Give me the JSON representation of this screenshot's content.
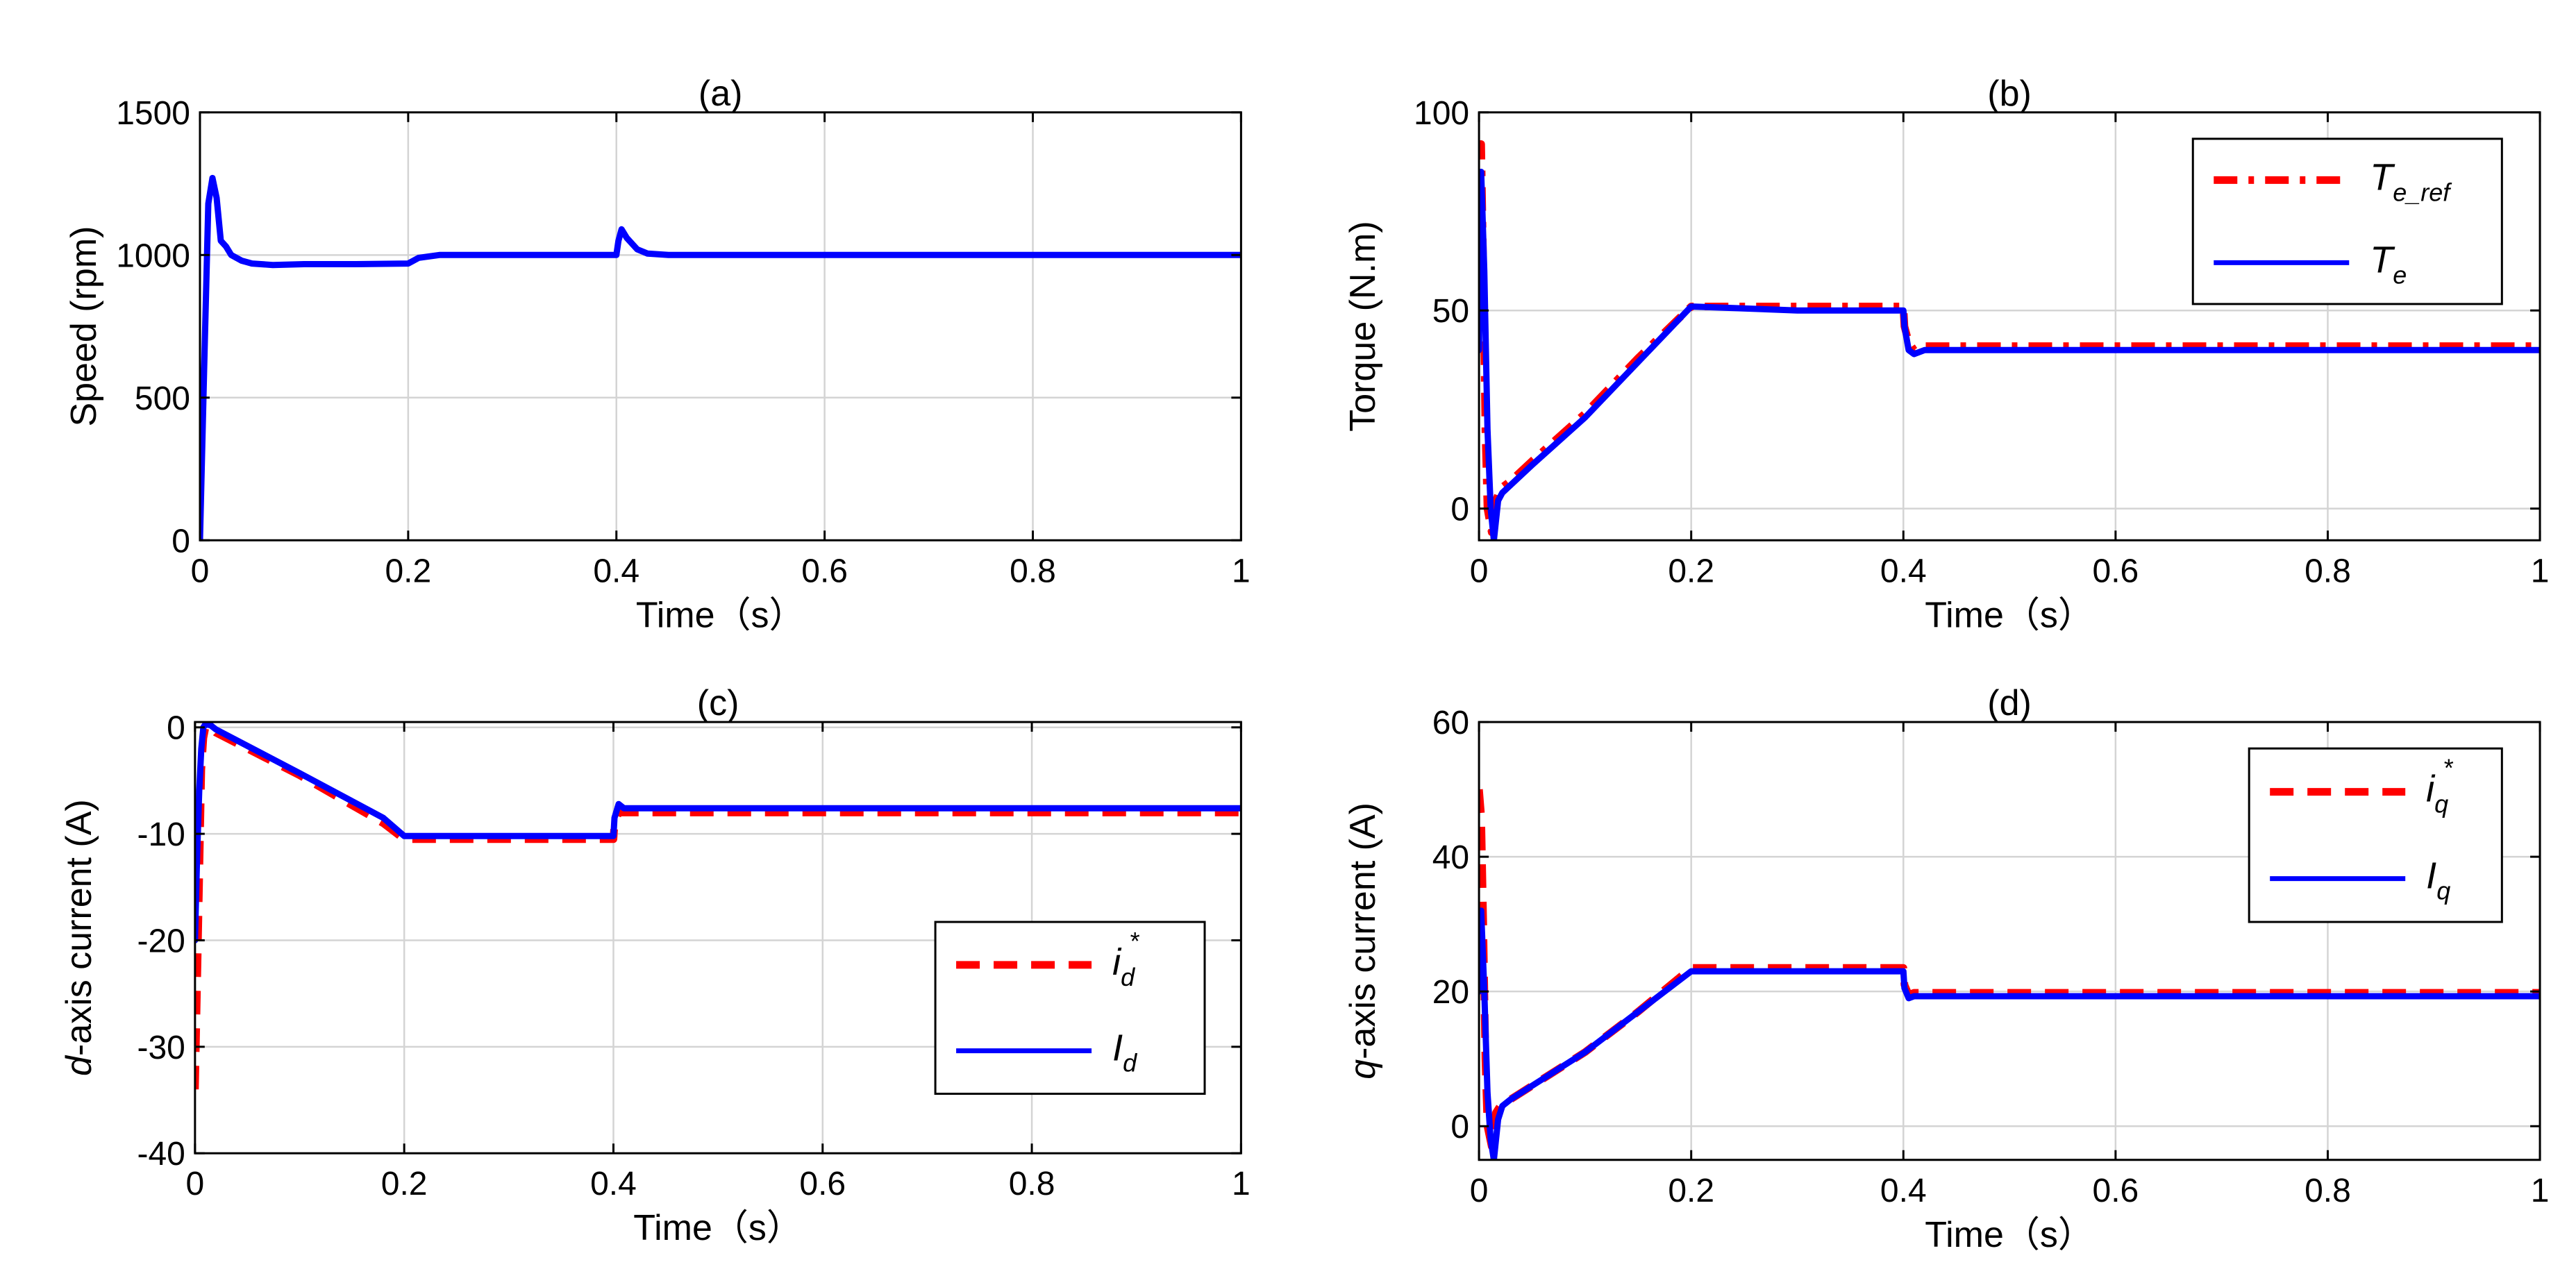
{
  "colors": {
    "ref": "#ff0000",
    "actual": "#0000ff",
    "grid": "#d4d4d4",
    "axis": "#000000"
  },
  "chart_data": [
    {
      "type": "line",
      "title": "(a)",
      "xlabel": "Time（s）",
      "ylabel": "Speed (rpm)",
      "xlim": [
        0,
        1
      ],
      "ylim": [
        0,
        1500
      ],
      "xticks": [
        0,
        0.2,
        0.4,
        0.6,
        0.8,
        1
      ],
      "xtick_labels": [
        "0",
        "0.2",
        "0.4",
        "0.6",
        "0.8",
        "1"
      ],
      "yticks": [
        0,
        500,
        1000,
        1500
      ],
      "ytick_labels": [
        "0",
        "500",
        "1000",
        "1500"
      ],
      "grid": true,
      "legend": null,
      "series": [
        {
          "style": "solid",
          "color": "#0000ff",
          "x": [
            0,
            0.004,
            0.008,
            0.012,
            0.016,
            0.02,
            0.025,
            0.03,
            0.04,
            0.05,
            0.07,
            0.1,
            0.15,
            0.2,
            0.21,
            0.23,
            0.3,
            0.4,
            0.402,
            0.405,
            0.41,
            0.42,
            0.43,
            0.45,
            0.5,
            0.7,
            1.0
          ],
          "y": [
            0,
            600,
            1180,
            1270,
            1200,
            1050,
            1030,
            1000,
            980,
            970,
            965,
            968,
            968,
            970,
            990,
            1000,
            1000,
            1000,
            1050,
            1090,
            1060,
            1020,
            1005,
            1000,
            1000,
            1000,
            1000
          ]
        }
      ]
    },
    {
      "type": "line",
      "title": "(b)",
      "xlabel": "Time（s）",
      "ylabel": "Torque (N.m)",
      "xlim": [
        0,
        1
      ],
      "ylim": [
        -8,
        100
      ],
      "xticks": [
        0,
        0.2,
        0.4,
        0.6,
        0.8,
        1
      ],
      "xtick_labels": [
        "0",
        "0.2",
        "0.4",
        "0.6",
        "0.8",
        "1"
      ],
      "yticks": [
        0,
        50,
        100
      ],
      "ytick_labels": [
        "0",
        "50",
        "100"
      ],
      "grid": true,
      "legend": "top-right",
      "series": [
        {
          "name": "T",
          "name_sub": "e_ref",
          "style": "dashdot",
          "color": "#ff0000",
          "x": [
            0,
            0.002,
            0.004,
            0.006,
            0.008,
            0.012,
            0.016,
            0.02,
            0.03,
            0.05,
            0.1,
            0.15,
            0.2,
            0.3,
            0.4,
            0.401,
            0.405,
            0.41,
            0.42,
            0.5,
            0.7,
            1.0
          ],
          "y": [
            90,
            92,
            60,
            20,
            0,
            -6,
            2,
            5,
            7,
            12,
            24,
            38,
            51,
            51,
            51,
            46,
            42,
            40,
            41,
            41,
            41,
            41
          ]
        },
        {
          "name": "T",
          "name_sub": "e",
          "style": "solid",
          "color": "#0000ff",
          "x": [
            0,
            0.002,
            0.005,
            0.008,
            0.011,
            0.014,
            0.018,
            0.022,
            0.03,
            0.05,
            0.1,
            0.15,
            0.2,
            0.3,
            0.4,
            0.401,
            0.405,
            0.41,
            0.42,
            0.5,
            0.7,
            1.0
          ],
          "y": [
            40,
            85,
            60,
            20,
            0,
            -8,
            2,
            4,
            6,
            11,
            23,
            37,
            51,
            50,
            50,
            46,
            40,
            39,
            40,
            40,
            40,
            40
          ]
        }
      ]
    },
    {
      "type": "line",
      "title": "(c)",
      "xlabel": "Time（s）",
      "ylabel": "d-axis current (A)",
      "ylabel_italic_prefix": "d",
      "ylabel_rest": "-axis current (A)",
      "xlim": [
        0,
        1
      ],
      "ylim": [
        -40,
        0.5
      ],
      "xticks": [
        0,
        0.2,
        0.4,
        0.6,
        0.8,
        1
      ],
      "xtick_labels": [
        "0",
        "0.2",
        "0.4",
        "0.6",
        "0.8",
        "1"
      ],
      "yticks": [
        -40,
        -30,
        -20,
        -10,
        0
      ],
      "ytick_labels": [
        "-40",
        "-30",
        "-20",
        "-10",
        "0"
      ],
      "grid": true,
      "legend": "bottom-right",
      "series": [
        {
          "name": "i",
          "name_sub": "d",
          "name_sup": "*",
          "style": "dashed",
          "color": "#ff0000",
          "x": [
            0,
            0.002,
            0.004,
            0.006,
            0.008,
            0.01,
            0.015,
            0.02,
            0.1,
            0.18,
            0.2,
            0.3,
            0.4,
            0.401,
            0.405,
            0.41,
            0.5,
            0.7,
            1.0
          ],
          "y": [
            -34,
            -24,
            -14,
            -4,
            -1,
            0,
            0,
            -0.5,
            -4.5,
            -9,
            -10.5,
            -10.5,
            -10.5,
            -9,
            -8,
            -8,
            -8,
            -8,
            -8
          ]
        },
        {
          "name": "I",
          "name_sub": "d",
          "style": "solid",
          "color": "#0000ff",
          "x": [
            0,
            0.002,
            0.004,
            0.006,
            0.008,
            0.01,
            0.015,
            0.02,
            0.1,
            0.18,
            0.2,
            0.3,
            0.4,
            0.401,
            0.405,
            0.41,
            0.5,
            0.7,
            1.0
          ],
          "y": [
            -20,
            -12,
            -6,
            -2,
            0,
            0.3,
            0.2,
            -0.2,
            -4.3,
            -8.5,
            -10.2,
            -10.2,
            -10.2,
            -8.5,
            -7.2,
            -7.6,
            -7.6,
            -7.6,
            -7.6
          ]
        }
      ]
    },
    {
      "type": "line",
      "title": "(d)",
      "xlabel": "Time（s）",
      "ylabel": "q-axis current (A)",
      "ylabel_italic_prefix": "q",
      "ylabel_rest": "-axis current (A)",
      "xlim": [
        0,
        1
      ],
      "ylim": [
        -5,
        60
      ],
      "xticks": [
        0,
        0.2,
        0.4,
        0.6,
        0.8,
        1
      ],
      "xtick_labels": [
        "0",
        "0.2",
        "0.4",
        "0.6",
        "0.8",
        "1"
      ],
      "yticks": [
        0,
        20,
        40,
        60
      ],
      "ytick_labels": [
        "0",
        "20",
        "40",
        "60"
      ],
      "grid": true,
      "legend": "top-right",
      "series": [
        {
          "name": "i",
          "name_sub": "q",
          "name_sup": "*",
          "style": "dashed",
          "color": "#ff0000",
          "x": [
            0,
            0.002,
            0.004,
            0.006,
            0.008,
            0.012,
            0.016,
            0.02,
            0.03,
            0.05,
            0.1,
            0.15,
            0.2,
            0.3,
            0.4,
            0.401,
            0.405,
            0.41,
            0.5,
            0.7,
            1.0
          ],
          "y": [
            50,
            46,
            30,
            10,
            0,
            -3,
            2,
            3,
            4,
            6,
            11,
            17,
            23.5,
            23.5,
            23.5,
            21,
            19.5,
            19.8,
            19.8,
            19.8,
            19.8
          ]
        },
        {
          "name": "I",
          "name_sub": "q",
          "style": "solid",
          "color": "#0000ff",
          "x": [
            0,
            0.002,
            0.005,
            0.008,
            0.011,
            0.014,
            0.018,
            0.022,
            0.03,
            0.05,
            0.1,
            0.15,
            0.2,
            0.3,
            0.4,
            0.401,
            0.405,
            0.41,
            0.5,
            0.7,
            1.0
          ],
          "y": [
            20,
            32,
            20,
            5,
            -2,
            -5,
            1,
            3,
            4,
            6,
            11,
            17,
            23,
            23,
            23,
            20.5,
            19,
            19.3,
            19.3,
            19.3,
            19.3
          ]
        }
      ]
    }
  ]
}
